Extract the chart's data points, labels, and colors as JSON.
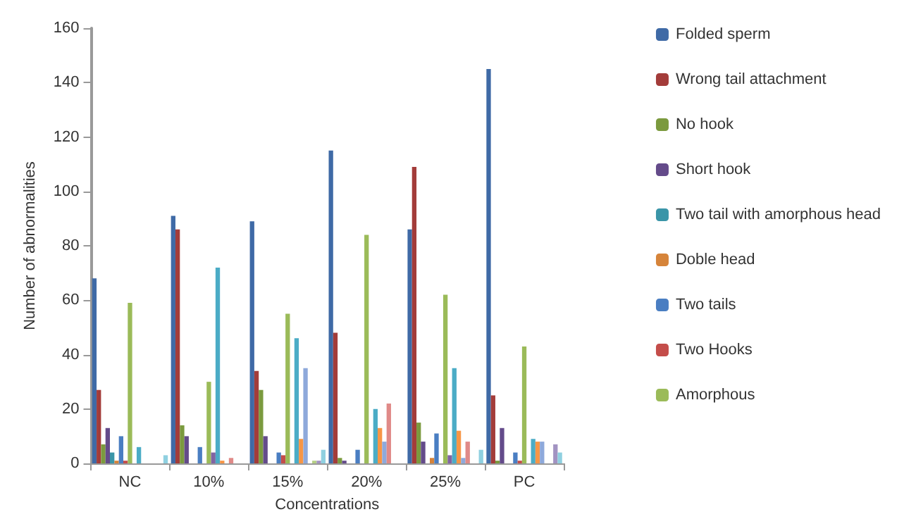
{
  "chart_data": {
    "type": "bar",
    "xlabel": "Concentrations",
    "ylabel": "Number of abnormalities",
    "categories": [
      "NC",
      "10%",
      "15%",
      "20%",
      "25%",
      "PC"
    ],
    "ylim": [
      0,
      160
    ],
    "yticks": [
      0,
      20,
      40,
      60,
      80,
      100,
      120,
      140,
      160
    ],
    "grid": false,
    "legend": "right",
    "series": [
      {
        "name": "Folded sperm",
        "color": "#3f6aa6",
        "values": [
          68,
          91,
          89,
          115,
          86,
          145
        ]
      },
      {
        "name": "Wrong tail attachment",
        "color": "#a33c3a",
        "values": [
          27,
          86,
          34,
          48,
          109,
          25
        ]
      },
      {
        "name": "No hook",
        "color": "#7b9a3e",
        "values": [
          7,
          14,
          27,
          2,
          15,
          1
        ]
      },
      {
        "name": "Short hook",
        "color": "#644b8a",
        "values": [
          13,
          10,
          10,
          1,
          8,
          13
        ]
      },
      {
        "name": "Two tail with amorphous head",
        "color": "#3a95a8",
        "values": [
          4,
          0,
          0,
          0,
          0,
          0
        ]
      },
      {
        "name": "Doble head",
        "color": "#d6843a",
        "values": [
          1,
          0,
          0,
          0,
          2,
          0
        ]
      },
      {
        "name": "Two tails",
        "color": "#4a7ec2",
        "values": [
          10,
          6,
          4,
          5,
          11,
          4
        ]
      },
      {
        "name": "Two Hooks",
        "color": "#c44d4a",
        "values": [
          1,
          0,
          3,
          0,
          0,
          1
        ]
      },
      {
        "name": "Amorphous",
        "color": "#9bbb59",
        "values": [
          59,
          30,
          55,
          84,
          62,
          43
        ]
      },
      {
        "color": "#8064a2",
        "values": [
          0,
          4,
          0,
          0,
          3,
          0
        ]
      },
      {
        "color": "#4bacc6",
        "values": [
          6,
          72,
          46,
          20,
          35,
          9
        ]
      },
      {
        "color": "#f79646",
        "values": [
          0,
          1,
          9,
          13,
          12,
          8
        ]
      },
      {
        "color": "#8ea9db",
        "values": [
          0,
          0,
          35,
          8,
          2,
          8
        ]
      },
      {
        "color": "#e08a88",
        "values": [
          0,
          2,
          0,
          22,
          8,
          0
        ]
      },
      {
        "color": "#b5cf85",
        "values": [
          0,
          0,
          1,
          0,
          0,
          0
        ]
      },
      {
        "color": "#a293c2",
        "values": [
          0,
          0,
          1,
          0,
          0,
          7
        ]
      },
      {
        "color": "#8fd0e0",
        "values": [
          3,
          0,
          5,
          0,
          5,
          4
        ]
      }
    ]
  }
}
